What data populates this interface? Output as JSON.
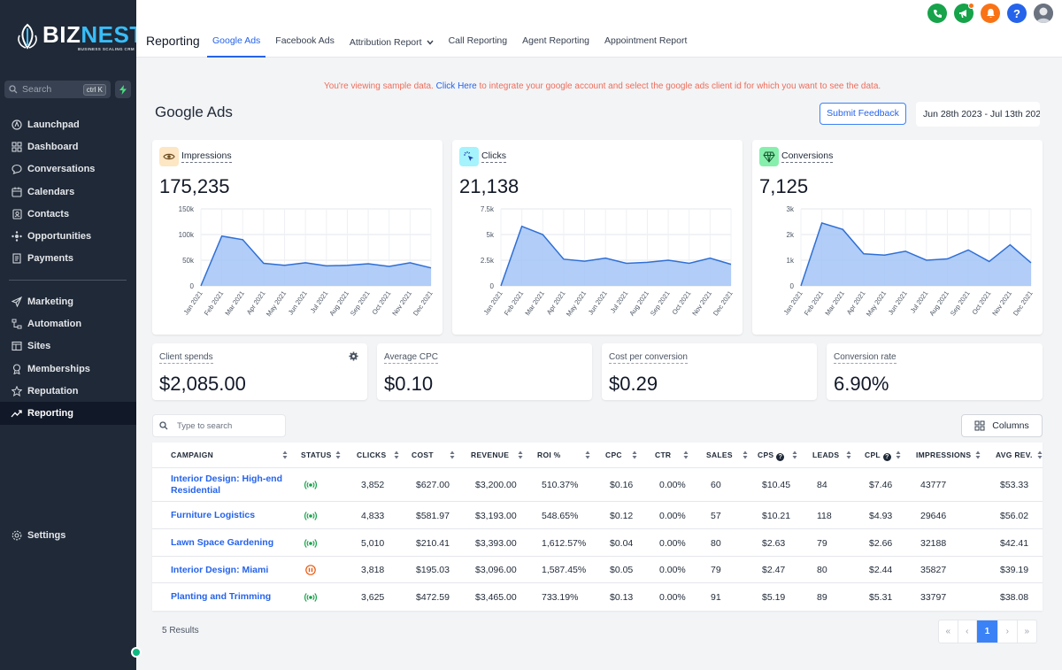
{
  "brand": {
    "name_a": "BIZ",
    "name_b": "NEST",
    "tagline": "BUSINESS SCALING CRM"
  },
  "sidebar": {
    "search_placeholder": "Search",
    "search_shortcut": "ctrl K",
    "items": [
      {
        "label": "Launchpad",
        "icon": "launchpad-icon"
      },
      {
        "label": "Dashboard",
        "icon": "dashboard-icon"
      },
      {
        "label": "Conversations",
        "icon": "chat-icon"
      },
      {
        "label": "Calendars",
        "icon": "calendar-icon"
      },
      {
        "label": "Contacts",
        "icon": "contacts-icon"
      },
      {
        "label": "Opportunities",
        "icon": "opportunities-icon"
      },
      {
        "label": "Payments",
        "icon": "payments-icon"
      }
    ],
    "items2": [
      {
        "label": "Marketing",
        "icon": "send-icon"
      },
      {
        "label": "Automation",
        "icon": "automation-icon"
      },
      {
        "label": "Sites",
        "icon": "sites-icon"
      },
      {
        "label": "Memberships",
        "icon": "membership-icon"
      },
      {
        "label": "Reputation",
        "icon": "star-icon"
      },
      {
        "label": "Reporting",
        "icon": "trend-icon",
        "active": true
      }
    ],
    "settings_label": "Settings"
  },
  "topbar": {
    "title": "Reporting",
    "tabs": [
      "Google Ads",
      "Facebook Ads",
      "Attribution Report",
      "Call Reporting",
      "Agent Reporting",
      "Appointment Report"
    ],
    "active_tab": "Google Ads",
    "icon_colors": {
      "phone": "#16a34a",
      "megaphone": "#16a34a",
      "bell": "#f97316",
      "help": "#2563eb"
    }
  },
  "notice": {
    "before": "You're viewing sample data.",
    "link": "Click Here",
    "after": "to integrate your google account and select the google ads client id for which you want to see the data."
  },
  "page": {
    "title": "Google Ads",
    "feedback_button": "Submit Feedback",
    "date_range": "Jun 28th 2023 - Jul 13th 202"
  },
  "metrics": [
    {
      "label": "Impressions",
      "value": "175,235",
      "icon": "eye-icon",
      "icon_bg": "#fde6c3"
    },
    {
      "label": "Clicks",
      "value": "21,138",
      "icon": "cursor-click-icon",
      "icon_bg": "#a5f3fc"
    },
    {
      "label": "Conversions",
      "value": "7,125",
      "icon": "diamond-icon",
      "icon_bg": "#86efac"
    }
  ],
  "chart_data": [
    {
      "type": "area",
      "title": "Impressions",
      "x": [
        "Jan 2021",
        "Feb 2021",
        "Mar 2021",
        "Apr 2021",
        "May 2021",
        "Jun 2021",
        "Jul 2021",
        "Aug 2021",
        "Sep 2021",
        "Oct 2021",
        "Nov 2021",
        "Dec 2021"
      ],
      "values": [
        0,
        97000,
        90000,
        44000,
        40000,
        45000,
        39000,
        40000,
        43000,
        38000,
        45000,
        35000
      ],
      "yticks": [
        "0",
        "50k",
        "100k",
        "150k"
      ],
      "ylim": [
        0,
        150000
      ],
      "grid": true,
      "color": "#a3c4f7"
    },
    {
      "type": "area",
      "title": "Clicks",
      "x": [
        "Jan 2021",
        "Feb 2021",
        "Mar 2021",
        "Apr 2021",
        "May 2021",
        "Jun 2021",
        "Jul 2021",
        "Aug 2021",
        "Sep 2021",
        "Oct 2021",
        "Nov 2021",
        "Dec 2021"
      ],
      "values": [
        0,
        5800,
        5000,
        2600,
        2400,
        2700,
        2200,
        2300,
        2500,
        2200,
        2700,
        2100
      ],
      "yticks": [
        "0",
        "2.5k",
        "5k",
        "7.5k"
      ],
      "ylim": [
        0,
        7500
      ],
      "grid": true,
      "color": "#a3c4f7"
    },
    {
      "type": "area",
      "title": "Conversions",
      "x": [
        "Jan 2021",
        "Feb 2021",
        "Mar 2021",
        "Apr 2021",
        "May 2021",
        "Jun 2021",
        "Jul 2021",
        "Aug 2021",
        "Sep 2021",
        "Oct 2021",
        "Nov 2021",
        "Dec 2021"
      ],
      "values": [
        0,
        2450,
        2200,
        1250,
        1200,
        1350,
        1000,
        1050,
        1400,
        950,
        1600,
        900
      ],
      "yticks": [
        "0",
        "1k",
        "2k",
        "3k"
      ],
      "ylim": [
        0,
        3000
      ],
      "grid": true,
      "color": "#a3c4f7"
    }
  ],
  "stats": [
    {
      "label": "Client spends",
      "value": "$2,085.00",
      "gear": true
    },
    {
      "label": "Average CPC",
      "value": "$0.10"
    },
    {
      "label": "Cost per conversion",
      "value": "$0.29"
    },
    {
      "label": "Conversion rate",
      "value": "6.90%"
    }
  ],
  "table": {
    "search_placeholder": "Type to search",
    "columns_button": "Columns",
    "headers": [
      "CAMPAIGN",
      "STATUS",
      "CLICKS",
      "COST",
      "REVENUE",
      "ROI %",
      "CPC",
      "CTR",
      "SALES",
      "CPS",
      "LEADS",
      "CPL",
      "IMPRESSIONS",
      "AVG REV."
    ],
    "rows": [
      {
        "campaign": "Interior Design: High-end Residential",
        "status": "active",
        "clicks": "3,852",
        "cost": "$627.00",
        "revenue": "$3,200.00",
        "roi": "510.37%",
        "cpc": "$0.16",
        "ctr": "0.00%",
        "sales": "60",
        "cps": "$10.45",
        "leads": "84",
        "cpl": "$7.46",
        "impressions": "43777",
        "avg_rev": "$53.33"
      },
      {
        "campaign": "Furniture Logistics",
        "status": "active",
        "clicks": "4,833",
        "cost": "$581.97",
        "revenue": "$3,193.00",
        "roi": "548.65%",
        "cpc": "$0.12",
        "ctr": "0.00%",
        "sales": "57",
        "cps": "$10.21",
        "leads": "118",
        "cpl": "$4.93",
        "impressions": "29646",
        "avg_rev": "$56.02"
      },
      {
        "campaign": "Lawn Space Gardening",
        "status": "active",
        "clicks": "5,010",
        "cost": "$210.41",
        "revenue": "$3,393.00",
        "roi": "1,612.57%",
        "cpc": "$0.04",
        "ctr": "0.00%",
        "sales": "80",
        "cps": "$2.63",
        "leads": "79",
        "cpl": "$2.66",
        "impressions": "32188",
        "avg_rev": "$42.41"
      },
      {
        "campaign": "Interior Design: Miami",
        "status": "paused",
        "clicks": "3,818",
        "cost": "$195.03",
        "revenue": "$3,096.00",
        "roi": "1,587.45%",
        "cpc": "$0.05",
        "ctr": "0.00%",
        "sales": "79",
        "cps": "$2.47",
        "leads": "80",
        "cpl": "$2.44",
        "impressions": "35827",
        "avg_rev": "$39.19"
      },
      {
        "campaign": "Planting and Trimming",
        "status": "active",
        "clicks": "3,625",
        "cost": "$472.59",
        "revenue": "$3,465.00",
        "roi": "733.19%",
        "cpc": "$0.13",
        "ctr": "0.00%",
        "sales": "91",
        "cps": "$5.19",
        "leads": "89",
        "cpl": "$5.31",
        "impressions": "33797",
        "avg_rev": "$38.08"
      }
    ],
    "results_label": "5 Results",
    "pager": {
      "first": "«",
      "prev": "‹",
      "current": "1",
      "next": "›",
      "last": "»"
    }
  }
}
